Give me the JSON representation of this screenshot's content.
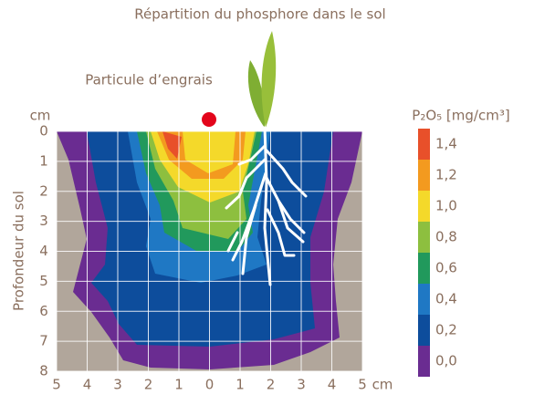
{
  "chart_data": {
    "type": "contour",
    "title": "Répartition du phosphore dans le sol",
    "annotation": "Particule d’engrais",
    "y_label": "Profondeur du sol",
    "x_unit": "cm",
    "y_unit": "cm",
    "xlim": [
      -5,
      5
    ],
    "xticks": [
      {
        "value": -5,
        "label": "5"
      },
      {
        "value": -4,
        "label": "4"
      },
      {
        "value": -3,
        "label": "3"
      },
      {
        "value": -2,
        "label": "2"
      },
      {
        "value": -1,
        "label": "1"
      },
      0,
      1,
      2,
      3,
      4,
      5
    ],
    "ylim": [
      0,
      8
    ],
    "y_inverted": true,
    "yticks": [
      0,
      1,
      2,
      3,
      4,
      5,
      6,
      7,
      8
    ],
    "grid": true,
    "colorbar": {
      "title": "P₂O₅ [mg/cm³]",
      "ticks": [
        {
          "value": 0,
          "label": "0,0"
        },
        {
          "value": 0.2,
          "label": "0,2"
        },
        {
          "value": 0.4,
          "label": "0,4"
        },
        {
          "value": 0.6,
          "label": "0,6"
        },
        {
          "value": 0.8,
          "label": "0,8"
        },
        {
          "value": 1.0,
          "label": "1,0"
        },
        {
          "value": 1.2,
          "label": "1,2"
        },
        {
          "value": 1.4,
          "label": "1,4"
        }
      ],
      "colors": [
        "#6a2c91",
        "#0d4d9c",
        "#1f78c4",
        "#21995c",
        "#8dbf3f",
        "#f4d92a",
        "#f39a1f",
        "#e8502a"
      ]
    }
  }
}
